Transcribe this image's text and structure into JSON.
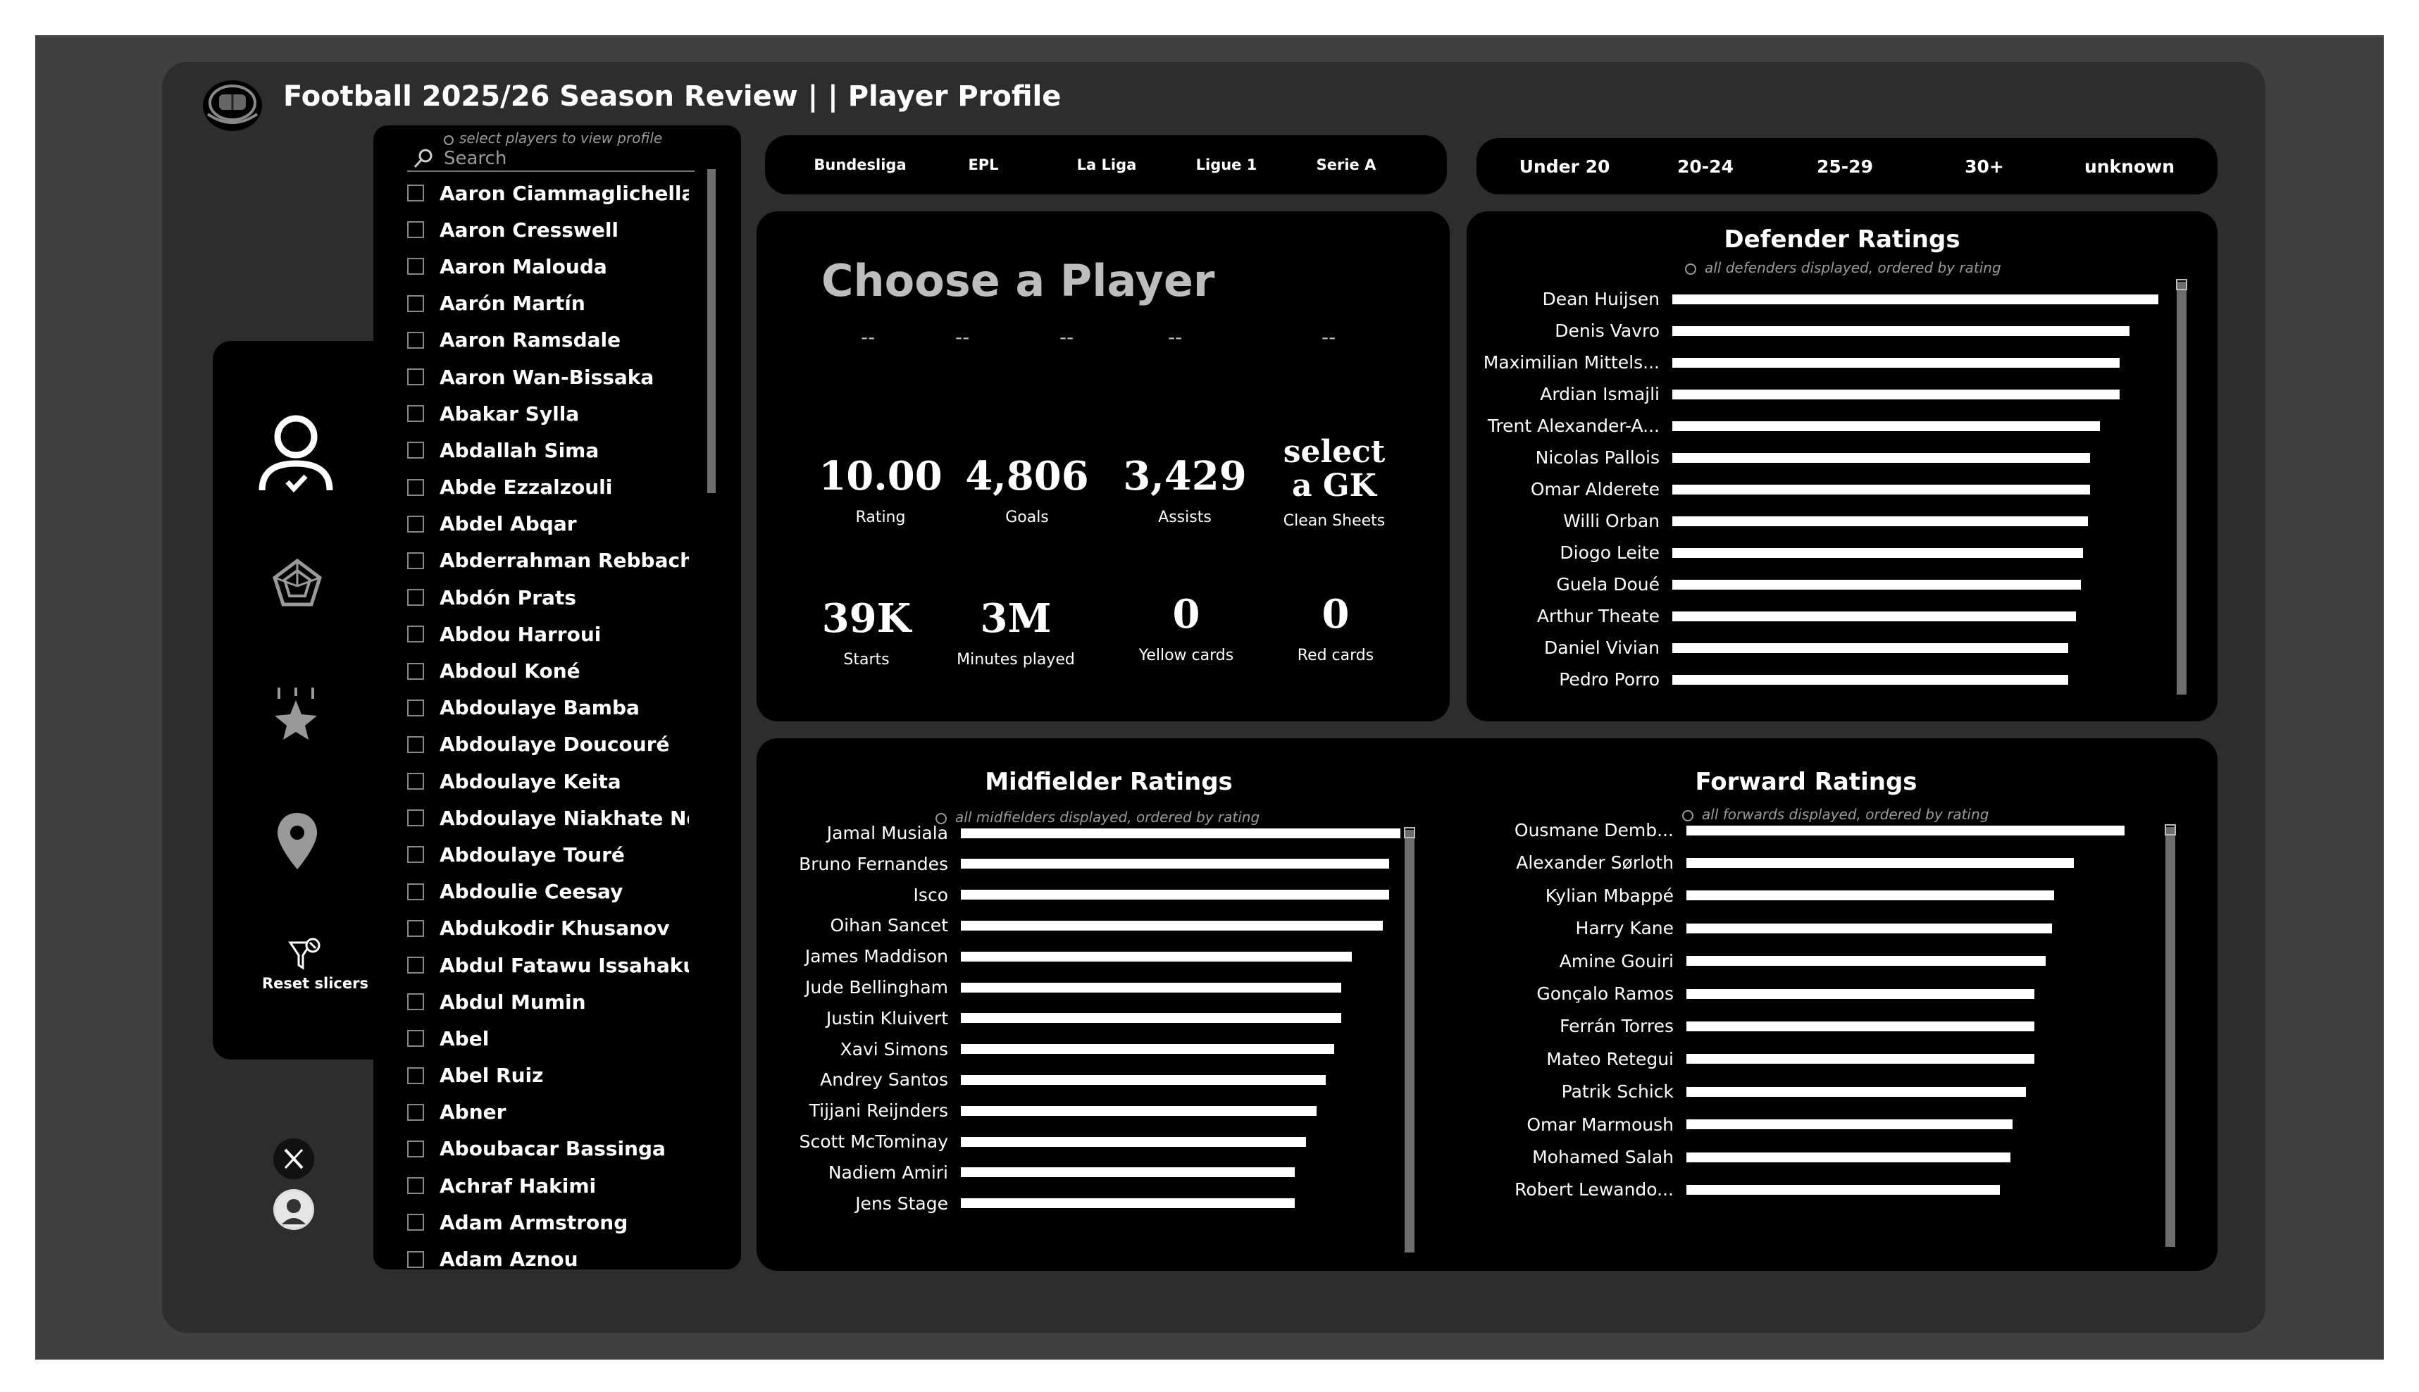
{
  "header": {
    "title": "Football 2025/26 Season Review | | Player Profile"
  },
  "nav": {
    "reset_label": "Reset slicers"
  },
  "slicer": {
    "hint": "select players to view profile",
    "placeholder": "Search",
    "players": [
      "Aaron Ciammaglichella",
      "Aaron Cresswell",
      "Aaron Malouda",
      "Aarón Martín",
      "Aaron Ramsdale",
      "Aaron Wan-Bissaka",
      "Abakar Sylla",
      "Abdallah Sima",
      "Abde Ezzalzouli",
      "Abdel Abqar",
      "Abderrahman Rebbach",
      "Abdón Prats",
      "Abdou Harroui",
      "Abdoul Koné",
      "Abdoulaye Bamba",
      "Abdoulaye Doucouré",
      "Abdoulaye Keita",
      "Abdoulaye Niakhate Ndiaye",
      "Abdoulaye Touré",
      "Abdoulie Ceesay",
      "Abdukodir Khusanov",
      "Abdul Fatawu Issahaku",
      "Abdul Mumin",
      "Abel",
      "Abel Ruiz",
      "Abner",
      "Aboubacar Bassinga",
      "Achraf Hakimi",
      "Adam Armstrong",
      "Adam Aznou"
    ]
  },
  "leagues": [
    "Bundesliga",
    "EPL",
    "La Liga",
    "Ligue 1",
    "Serie A"
  ],
  "age_groups": [
    "Under 20",
    "20-24",
    "25-29",
    "30+",
    "unknown"
  ],
  "profile": {
    "heading": "Choose a Player",
    "placeholders": [
      "--",
      "--",
      "--",
      "--",
      "--"
    ],
    "rating": {
      "value": "10.00",
      "label": "Rating"
    },
    "goals": {
      "value": "4,806",
      "label": "Goals"
    },
    "assists": {
      "value": "3,429",
      "label": "Assists"
    },
    "clean_sheets": {
      "value_line1": "select",
      "value_line2": "a GK",
      "label": "Clean Sheets"
    },
    "starts": {
      "value": "39K",
      "label": "Starts"
    },
    "minutes": {
      "value": "3M",
      "label": "Minutes played"
    },
    "yellow": {
      "value": "0",
      "label": "Yellow cards"
    },
    "red": {
      "value": "0",
      "label": "Red cards"
    }
  },
  "chart_data": [
    {
      "type": "bar",
      "title": "Defender Ratings",
      "subtitle": "all defenders displayed, ordered by rating",
      "categories": [
        "Dean Huijsen",
        "Denis Vavro",
        "Maximilian Mittels...",
        "Ardian Ismajli",
        "Trent Alexander-A...",
        "Nicolas Pallois",
        "Omar Alderete",
        "Willi Orban",
        "Diogo Leite",
        "Guela Doué",
        "Arthur Theate",
        "Daniel Vivian",
        "Pedro Porro"
      ],
      "values": [
        1.0,
        0.94,
        0.92,
        0.92,
        0.88,
        0.86,
        0.86,
        0.855,
        0.845,
        0.84,
        0.83,
        0.815,
        0.815
      ]
    },
    {
      "type": "bar",
      "title": "Midfielder Ratings",
      "subtitle": "all midfielders displayed, ordered by rating",
      "categories": [
        "Jamal Musiala",
        "Bruno Fernandes",
        "Isco",
        "Oihan Sancet",
        "James Maddison",
        "Jude Bellingham",
        "Justin Kluivert",
        "Xavi Simons",
        "Andrey Santos",
        "Tijjani Reijnders",
        "Scott McTominay",
        "Nadiem Amiri",
        "Jens Stage"
      ],
      "values": [
        1.0,
        0.975,
        0.975,
        0.96,
        0.89,
        0.865,
        0.865,
        0.85,
        0.83,
        0.81,
        0.785,
        0.76,
        0.76
      ]
    },
    {
      "type": "bar",
      "title": "Forward Ratings",
      "subtitle": "all forwards displayed, ordered by rating",
      "categories": [
        "Ousmane Demb...",
        "Alexander Sørloth",
        "Kylian Mbappé",
        "Harry Kane",
        "Amine Gouiri",
        "Gonçalo Ramos",
        "Ferrán Torres",
        "Mateo Retegui",
        "Patrik Schick",
        "Omar Marmoush",
        "Mohamed Salah",
        "Robert Lewando..."
      ],
      "values": [
        1.0,
        0.885,
        0.84,
        0.835,
        0.82,
        0.795,
        0.795,
        0.795,
        0.775,
        0.745,
        0.74,
        0.715
      ]
    }
  ]
}
